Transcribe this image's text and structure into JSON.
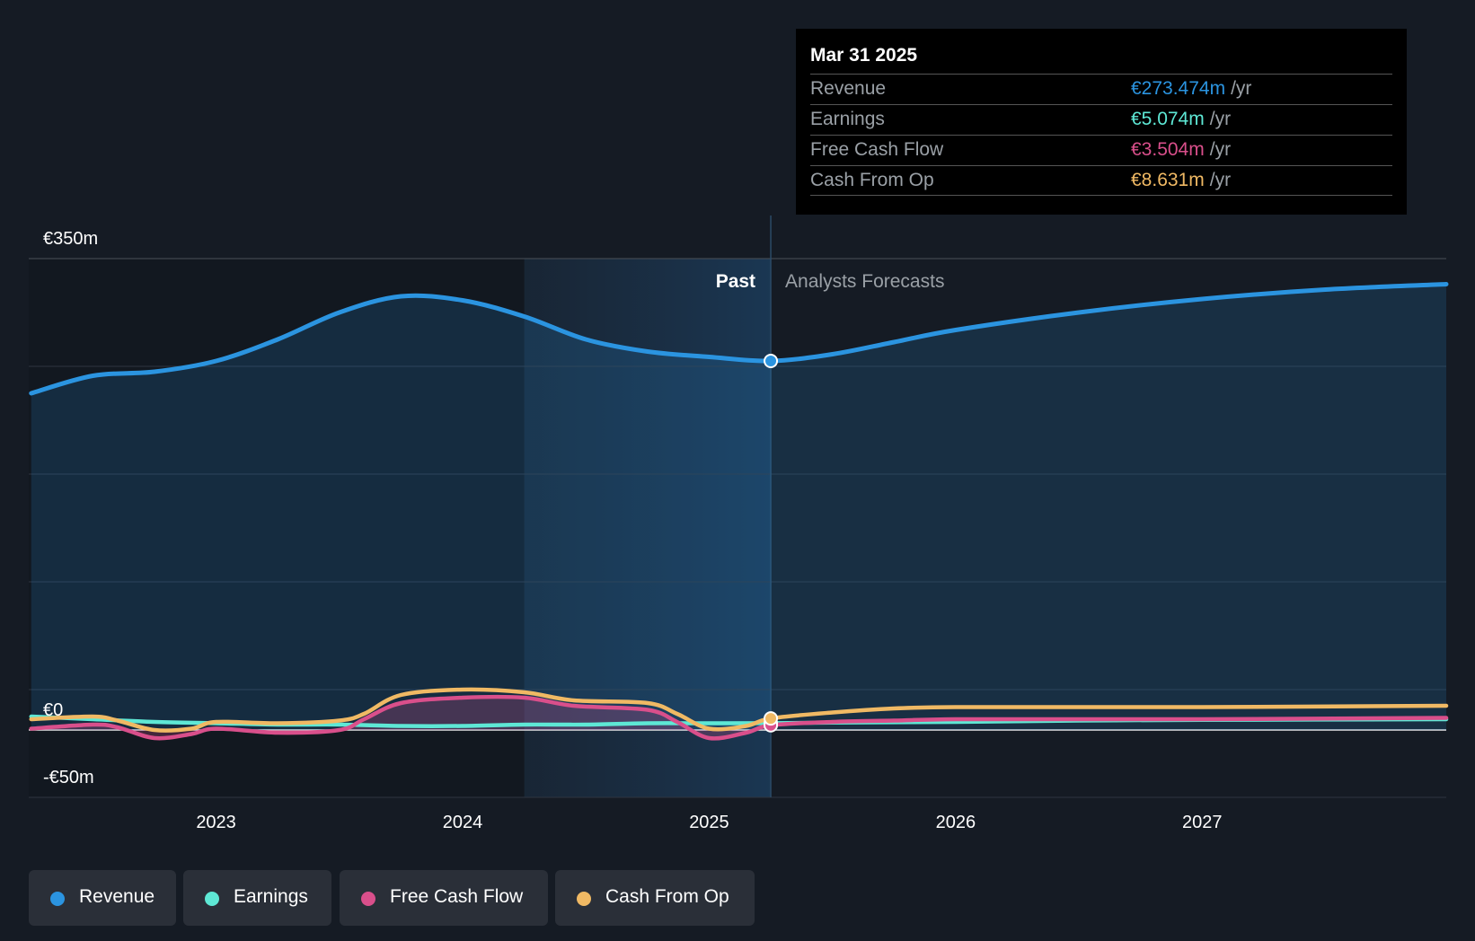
{
  "tooltip": {
    "date": "Mar 31 2025",
    "rows": [
      {
        "label": "Revenue",
        "value": "€273.474m",
        "unit": "/yr",
        "color": "#2b94e0"
      },
      {
        "label": "Earnings",
        "value": "€5.074m",
        "unit": "/yr",
        "color": "#5ee8d5"
      },
      {
        "label": "Free Cash Flow",
        "value": "€3.504m",
        "unit": "/yr",
        "color": "#d94f8b"
      },
      {
        "label": "Cash From Op",
        "value": "€8.631m",
        "unit": "/yr",
        "color": "#f0b964"
      }
    ]
  },
  "legend": [
    {
      "label": "Revenue",
      "color": "#2b94e0"
    },
    {
      "label": "Earnings",
      "color": "#5ee8d5"
    },
    {
      "label": "Free Cash Flow",
      "color": "#d94f8b"
    },
    {
      "label": "Cash From Op",
      "color": "#f0b964"
    }
  ],
  "chart_data": {
    "type": "line",
    "y_tick_labels": [
      "€350m",
      "€0",
      "-€50m"
    ],
    "ylim": [
      -50,
      350
    ],
    "x_tick_labels": [
      "2023",
      "2024",
      "2025",
      "2026",
      "2027"
    ],
    "x_tick_years": [
      2023,
      2024,
      2025,
      2026,
      2027
    ],
    "xlim": [
      2022.24,
      2027.99
    ],
    "past_label": "Past",
    "forecast_label": "Analysts Forecasts",
    "present_x": 2025.25,
    "highlight_start_x": 2024.25,
    "series": [
      {
        "name": "Revenue",
        "color": "#2b94e0",
        "points": [
          [
            2022.25,
            250
          ],
          [
            2022.5,
            263
          ],
          [
            2022.75,
            266
          ],
          [
            2023.0,
            274
          ],
          [
            2023.25,
            290
          ],
          [
            2023.5,
            310
          ],
          [
            2023.75,
            322
          ],
          [
            2024.0,
            319
          ],
          [
            2024.25,
            307
          ],
          [
            2024.5,
            290
          ],
          [
            2024.75,
            281
          ],
          [
            2025.0,
            277
          ],
          [
            2025.25,
            274
          ],
          [
            2025.5,
            279
          ],
          [
            2025.75,
            288
          ],
          [
            2026.0,
            297
          ],
          [
            2026.5,
            310
          ],
          [
            2027.0,
            320
          ],
          [
            2027.5,
            327
          ],
          [
            2027.99,
            331
          ]
        ]
      },
      {
        "name": "Earnings",
        "color": "#5ee8d5",
        "points": [
          [
            2022.25,
            10
          ],
          [
            2022.5,
            8
          ],
          [
            2022.75,
            6
          ],
          [
            2023.0,
            5
          ],
          [
            2023.25,
            4
          ],
          [
            2023.5,
            4
          ],
          [
            2023.75,
            3
          ],
          [
            2024.0,
            3
          ],
          [
            2024.25,
            4
          ],
          [
            2024.5,
            4
          ],
          [
            2024.75,
            5
          ],
          [
            2025.0,
            5
          ],
          [
            2025.25,
            5.1
          ],
          [
            2025.5,
            5.5
          ],
          [
            2026.0,
            6
          ],
          [
            2026.5,
            7
          ],
          [
            2027.0,
            7.5
          ],
          [
            2027.99,
            8
          ]
        ]
      },
      {
        "name": "Free Cash Flow",
        "color": "#d94f8b",
        "points": [
          [
            2022.25,
            1
          ],
          [
            2022.5,
            4
          ],
          [
            2022.6,
            2
          ],
          [
            2022.75,
            -6
          ],
          [
            2022.9,
            -3
          ],
          [
            2023.0,
            1
          ],
          [
            2023.25,
            -2
          ],
          [
            2023.5,
            0
          ],
          [
            2023.6,
            8
          ],
          [
            2023.75,
            20
          ],
          [
            2024.0,
            24
          ],
          [
            2024.25,
            24
          ],
          [
            2024.45,
            18
          ],
          [
            2024.75,
            15
          ],
          [
            2024.87,
            6
          ],
          [
            2025.0,
            -6
          ],
          [
            2025.15,
            -2
          ],
          [
            2025.25,
            3.5
          ],
          [
            2025.5,
            6
          ],
          [
            2025.75,
            7
          ],
          [
            2026.0,
            8
          ],
          [
            2026.5,
            8
          ],
          [
            2027.0,
            8
          ],
          [
            2027.99,
            9
          ]
        ]
      },
      {
        "name": "Cash From Op",
        "color": "#f0b964",
        "points": [
          [
            2022.25,
            8
          ],
          [
            2022.5,
            10
          ],
          [
            2022.6,
            7
          ],
          [
            2022.75,
            0
          ],
          [
            2022.9,
            1
          ],
          [
            2023.0,
            6
          ],
          [
            2023.25,
            5
          ],
          [
            2023.5,
            7
          ],
          [
            2023.6,
            12
          ],
          [
            2023.75,
            26
          ],
          [
            2024.0,
            30
          ],
          [
            2024.25,
            28
          ],
          [
            2024.45,
            22
          ],
          [
            2024.75,
            20
          ],
          [
            2024.87,
            12
          ],
          [
            2025.0,
            1
          ],
          [
            2025.15,
            3
          ],
          [
            2025.25,
            8.6
          ],
          [
            2025.5,
            13
          ],
          [
            2025.75,
            16
          ],
          [
            2026.0,
            17
          ],
          [
            2026.5,
            17
          ],
          [
            2027.0,
            17
          ],
          [
            2027.99,
            18
          ]
        ]
      }
    ]
  }
}
